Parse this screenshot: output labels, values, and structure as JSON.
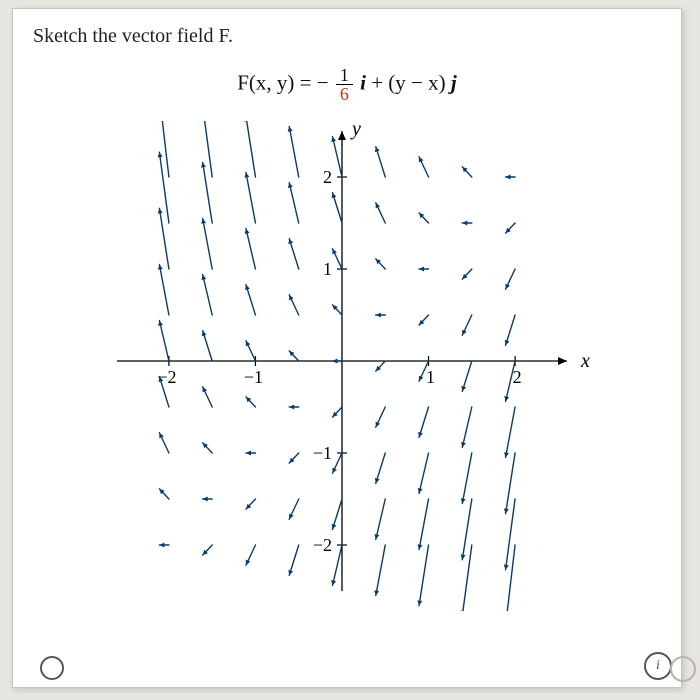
{
  "prompt_text": "Sketch the vector field F.",
  "formula": {
    "lhs": "F(x, y) = ",
    "frac_num": "1",
    "frac_den": "6",
    "i": "i",
    "mid": " + (y − x)",
    "j": "j",
    "minus": "− "
  },
  "chart": {
    "type": "vector-field",
    "xlim": [
      -2.6,
      2.6
    ],
    "ylim": [
      -2.5,
      2.5
    ],
    "xticks": [
      -2,
      -1,
      1,
      2
    ],
    "yticks": [
      -2,
      -1,
      1,
      2
    ],
    "xlabel": "x",
    "ylabel": "y",
    "grid_points": [
      -2,
      -1.5,
      -1,
      -0.5,
      0,
      0.5,
      1,
      1.5,
      2
    ],
    "vector_fn": {
      "fx_const": -0.1667,
      "fy_expr": "y-x"
    },
    "axis_color": "#000000",
    "tick_color": "#000000",
    "arrow_color": "#0a3a6a",
    "background": "#ffffff",
    "tick_fontsize": 18,
    "label_fontsize": 20,
    "arrow_scale": 0.22,
    "arrow_head": 5,
    "line_width": 1.4
  },
  "info_label": "i"
}
